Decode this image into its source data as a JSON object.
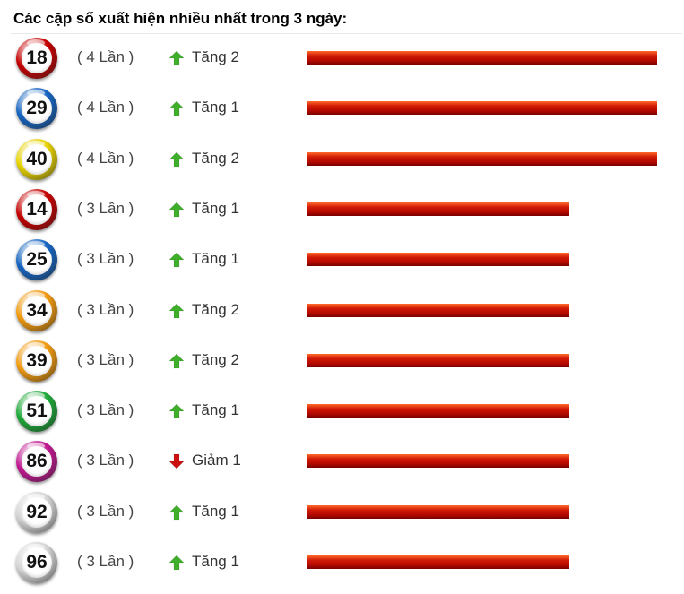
{
  "heading": "Các cặp số xuất hiện nhiều nhất trong 3 ngày:",
  "rows": [
    {
      "number": "18",
      "count": "( 4 Lần )",
      "trend": "Tăng 2",
      "direction": "up",
      "frequency": 4,
      "ball_color": "#c40000"
    },
    {
      "number": "29",
      "count": "( 4 Lần )",
      "trend": "Tăng 1",
      "direction": "up",
      "frequency": 4,
      "ball_color": "#1664c0"
    },
    {
      "number": "40",
      "count": "( 4 Lần )",
      "trend": "Tăng 2",
      "direction": "up",
      "frequency": 4,
      "ball_color": "#e6d200"
    },
    {
      "number": "14",
      "count": "( 3 Lần )",
      "trend": "Tăng 1",
      "direction": "up",
      "frequency": 3,
      "ball_color": "#c40000"
    },
    {
      "number": "25",
      "count": "( 3 Lần )",
      "trend": "Tăng 1",
      "direction": "up",
      "frequency": 3,
      "ball_color": "#1664c0"
    },
    {
      "number": "34",
      "count": "( 3 Lần )",
      "trend": "Tăng 2",
      "direction": "up",
      "frequency": 3,
      "ball_color": "#f09a10"
    },
    {
      "number": "39",
      "count": "( 3 Lần )",
      "trend": "Tăng 2",
      "direction": "up",
      "frequency": 3,
      "ball_color": "#f09a10"
    },
    {
      "number": "51",
      "count": "( 3 Lần )",
      "trend": "Tăng 1",
      "direction": "up",
      "frequency": 3,
      "ball_color": "#1ea838"
    },
    {
      "number": "86",
      "count": "( 3 Lần )",
      "trend": "Giảm 1",
      "direction": "down",
      "frequency": 3,
      "ball_color": "#c01890"
    },
    {
      "number": "92",
      "count": "( 3 Lần )",
      "trend": "Tăng 1",
      "direction": "up",
      "frequency": 3,
      "ball_color": "#d4d4d4"
    },
    {
      "number": "96",
      "count": "( 3 Lần )",
      "trend": "Tăng 1",
      "direction": "up",
      "frequency": 3,
      "ball_color": "#d4d4d4"
    }
  ],
  "max_frequency": 4,
  "icons": {
    "up": "green-up-arrow-icon",
    "down": "red-down-arrow-icon"
  },
  "colors": {
    "up_arrow": "#3fae2a",
    "down_arrow": "#cc1010",
    "bar": "#c00000"
  }
}
